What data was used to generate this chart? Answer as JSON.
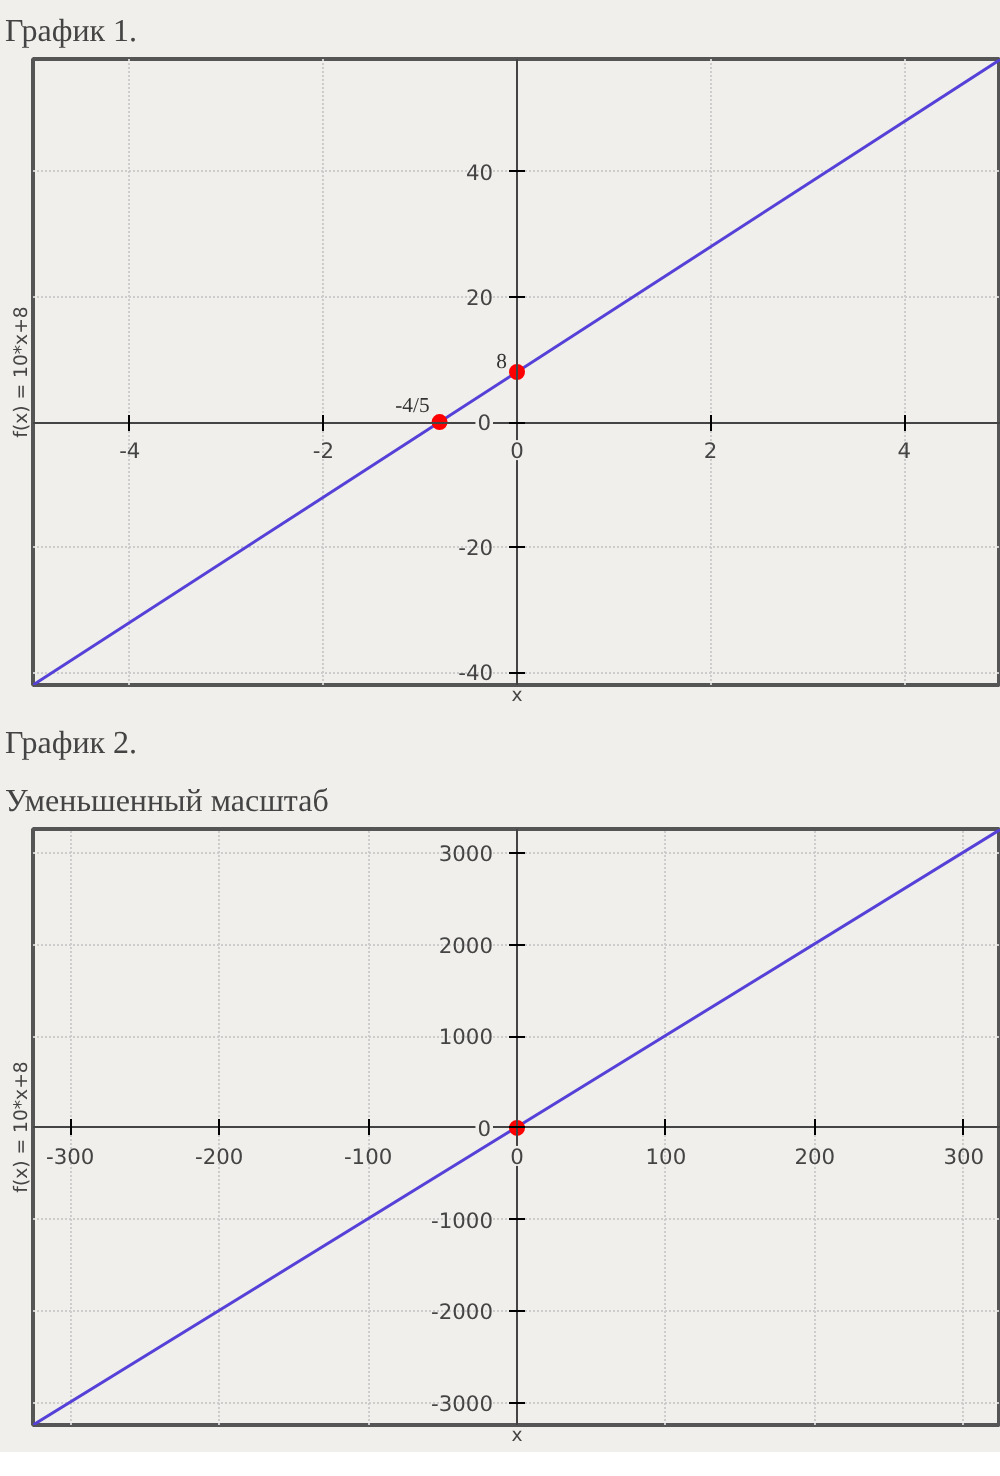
{
  "chart_data": [
    {
      "type": "line",
      "title": "График 1.",
      "xlabel": "x",
      "ylabel": "f(x) = 10*x+8",
      "xlim": [
        -5,
        5
      ],
      "ylim": [
        -42,
        58
      ],
      "xticks": [
        -4,
        -2,
        0,
        2,
        4
      ],
      "yticks": [
        -40,
        -20,
        0,
        20,
        40
      ],
      "grid": true,
      "series": [
        {
          "color": "#5540d8",
          "x": [
            -5,
            5
          ],
          "values": [
            -42,
            58
          ]
        },
        {
          "type": "scatter",
          "color": "#ff0000",
          "marker": "circle",
          "x": [
            -0.8,
            0
          ],
          "values": [
            0,
            8
          ]
        }
      ],
      "annotations": [
        {
          "text": "-4/5",
          "x": -0.8,
          "y": 0
        },
        {
          "text": "8",
          "x": 0,
          "y": 8
        }
      ]
    },
    {
      "type": "line",
      "title": "График 2.",
      "subtitle": "Уменьшенный масштаб",
      "xlabel": "x",
      "ylabel": "f(x) = 10*x+8",
      "xlim": [
        -325,
        325
      ],
      "ylim": [
        -3240,
        3260
      ],
      "xticks": [
        -300,
        -200,
        -100,
        0,
        100,
        200,
        300
      ],
      "yticks": [
        -3000,
        -2000,
        -1000,
        0,
        1000,
        2000,
        3000
      ],
      "grid": true,
      "series": [
        {
          "color": "#5540d8",
          "x": [
            -325,
            325
          ],
          "values": [
            -3240,
            3260
          ]
        },
        {
          "type": "scatter",
          "color": "#ff0000",
          "marker": "circle",
          "x": [
            0
          ],
          "values": [
            0
          ]
        }
      ]
    }
  ]
}
